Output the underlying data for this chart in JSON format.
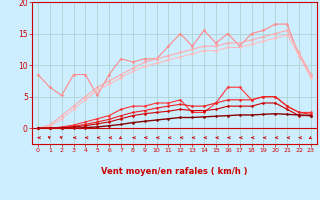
{
  "x": [
    0,
    1,
    2,
    3,
    4,
    5,
    6,
    7,
    8,
    9,
    10,
    11,
    12,
    13,
    14,
    15,
    16,
    17,
    18,
    19,
    20,
    21,
    22,
    23
  ],
  "series": [
    {
      "name": "line1_jagged",
      "color": "#ff8888",
      "lw": 0.8,
      "marker": "D",
      "ms": 1.5,
      "y": [
        8.5,
        6.5,
        5.2,
        8.5,
        8.5,
        5.2,
        8.5,
        11.0,
        10.5,
        11.0,
        11.0,
        13.0,
        15.0,
        13.0,
        15.5,
        13.5,
        15.0,
        13.0,
        15.0,
        15.5,
        16.5,
        16.5,
        11.5,
        8.5
      ]
    },
    {
      "name": "line2_smooth",
      "color": "#ffaaaa",
      "lw": 0.8,
      "marker": "D",
      "ms": 1.5,
      "y": [
        0.0,
        0.5,
        2.0,
        3.5,
        5.0,
        6.5,
        7.5,
        8.5,
        9.5,
        10.5,
        11.0,
        11.5,
        12.0,
        12.5,
        13.0,
        13.0,
        13.5,
        13.5,
        14.0,
        14.5,
        15.0,
        15.5,
        12.0,
        8.5
      ]
    },
    {
      "name": "line3_smooth",
      "color": "#ffbbbb",
      "lw": 0.8,
      "marker": "D",
      "ms": 1.5,
      "y": [
        0.0,
        0.3,
        1.5,
        3.0,
        4.5,
        6.0,
        7.0,
        8.0,
        9.0,
        9.8,
        10.3,
        10.8,
        11.3,
        11.8,
        12.3,
        12.3,
        12.8,
        12.8,
        13.3,
        13.8,
        14.3,
        14.8,
        11.5,
        8.0
      ]
    },
    {
      "name": "line4_red",
      "color": "#ff3333",
      "lw": 0.8,
      "marker": "D",
      "ms": 1.5,
      "y": [
        0.0,
        0.0,
        0.2,
        0.5,
        1.0,
        1.5,
        2.0,
        3.0,
        3.5,
        3.5,
        4.0,
        4.0,
        4.5,
        2.5,
        2.5,
        4.0,
        6.5,
        6.5,
        4.5,
        5.0,
        5.0,
        3.5,
        2.5,
        2.5
      ]
    },
    {
      "name": "line5_red",
      "color": "#ee2222",
      "lw": 0.8,
      "marker": "D",
      "ms": 1.5,
      "y": [
        0.0,
        0.0,
        0.1,
        0.3,
        0.6,
        1.0,
        1.4,
        2.0,
        2.5,
        2.8,
        3.2,
        3.5,
        3.8,
        3.5,
        3.5,
        4.0,
        4.5,
        4.5,
        4.5,
        5.0,
        5.0,
        3.5,
        2.5,
        2.2
      ]
    },
    {
      "name": "line6_darkred",
      "color": "#cc0000",
      "lw": 0.8,
      "marker": "D",
      "ms": 1.5,
      "y": [
        0.0,
        0.0,
        0.0,
        0.2,
        0.4,
        0.7,
        1.0,
        1.5,
        2.0,
        2.3,
        2.5,
        2.7,
        3.0,
        2.8,
        2.8,
        3.0,
        3.5,
        3.5,
        3.5,
        4.0,
        4.0,
        3.0,
        2.0,
        2.0
      ]
    },
    {
      "name": "line7_darkest",
      "color": "#880000",
      "lw": 1.0,
      "marker": "D",
      "ms": 1.5,
      "y": [
        0.0,
        0.0,
        0.0,
        0.0,
        0.1,
        0.2,
        0.4,
        0.6,
        0.9,
        1.1,
        1.3,
        1.5,
        1.7,
        1.7,
        1.8,
        1.9,
        2.0,
        2.1,
        2.1,
        2.2,
        2.3,
        2.2,
        2.1,
        2.0
      ]
    }
  ],
  "arrow_angles": [
    270,
    225,
    225,
    270,
    270,
    270,
    270,
    315,
    270,
    270,
    270,
    270,
    270,
    270,
    270,
    270,
    270,
    270,
    270,
    270,
    270,
    270,
    270,
    315
  ],
  "xlim": [
    -0.5,
    23.5
  ],
  "ylim": [
    -2.5,
    20
  ],
  "yticks": [
    0,
    5,
    10,
    15,
    20
  ],
  "xticks": [
    0,
    1,
    2,
    3,
    4,
    5,
    6,
    7,
    8,
    9,
    10,
    11,
    12,
    13,
    14,
    15,
    16,
    17,
    18,
    19,
    20,
    21,
    22,
    23
  ],
  "xlabel": "Vent moyen/en rafales ( km/h )",
  "bg_color": "#cceeff",
  "grid_color": "#aacccc",
  "text_color": "#cc0000",
  "tick_color": "#cc0000",
  "xlabel_color": "#cc0000",
  "spine_color": "#cc0000"
}
